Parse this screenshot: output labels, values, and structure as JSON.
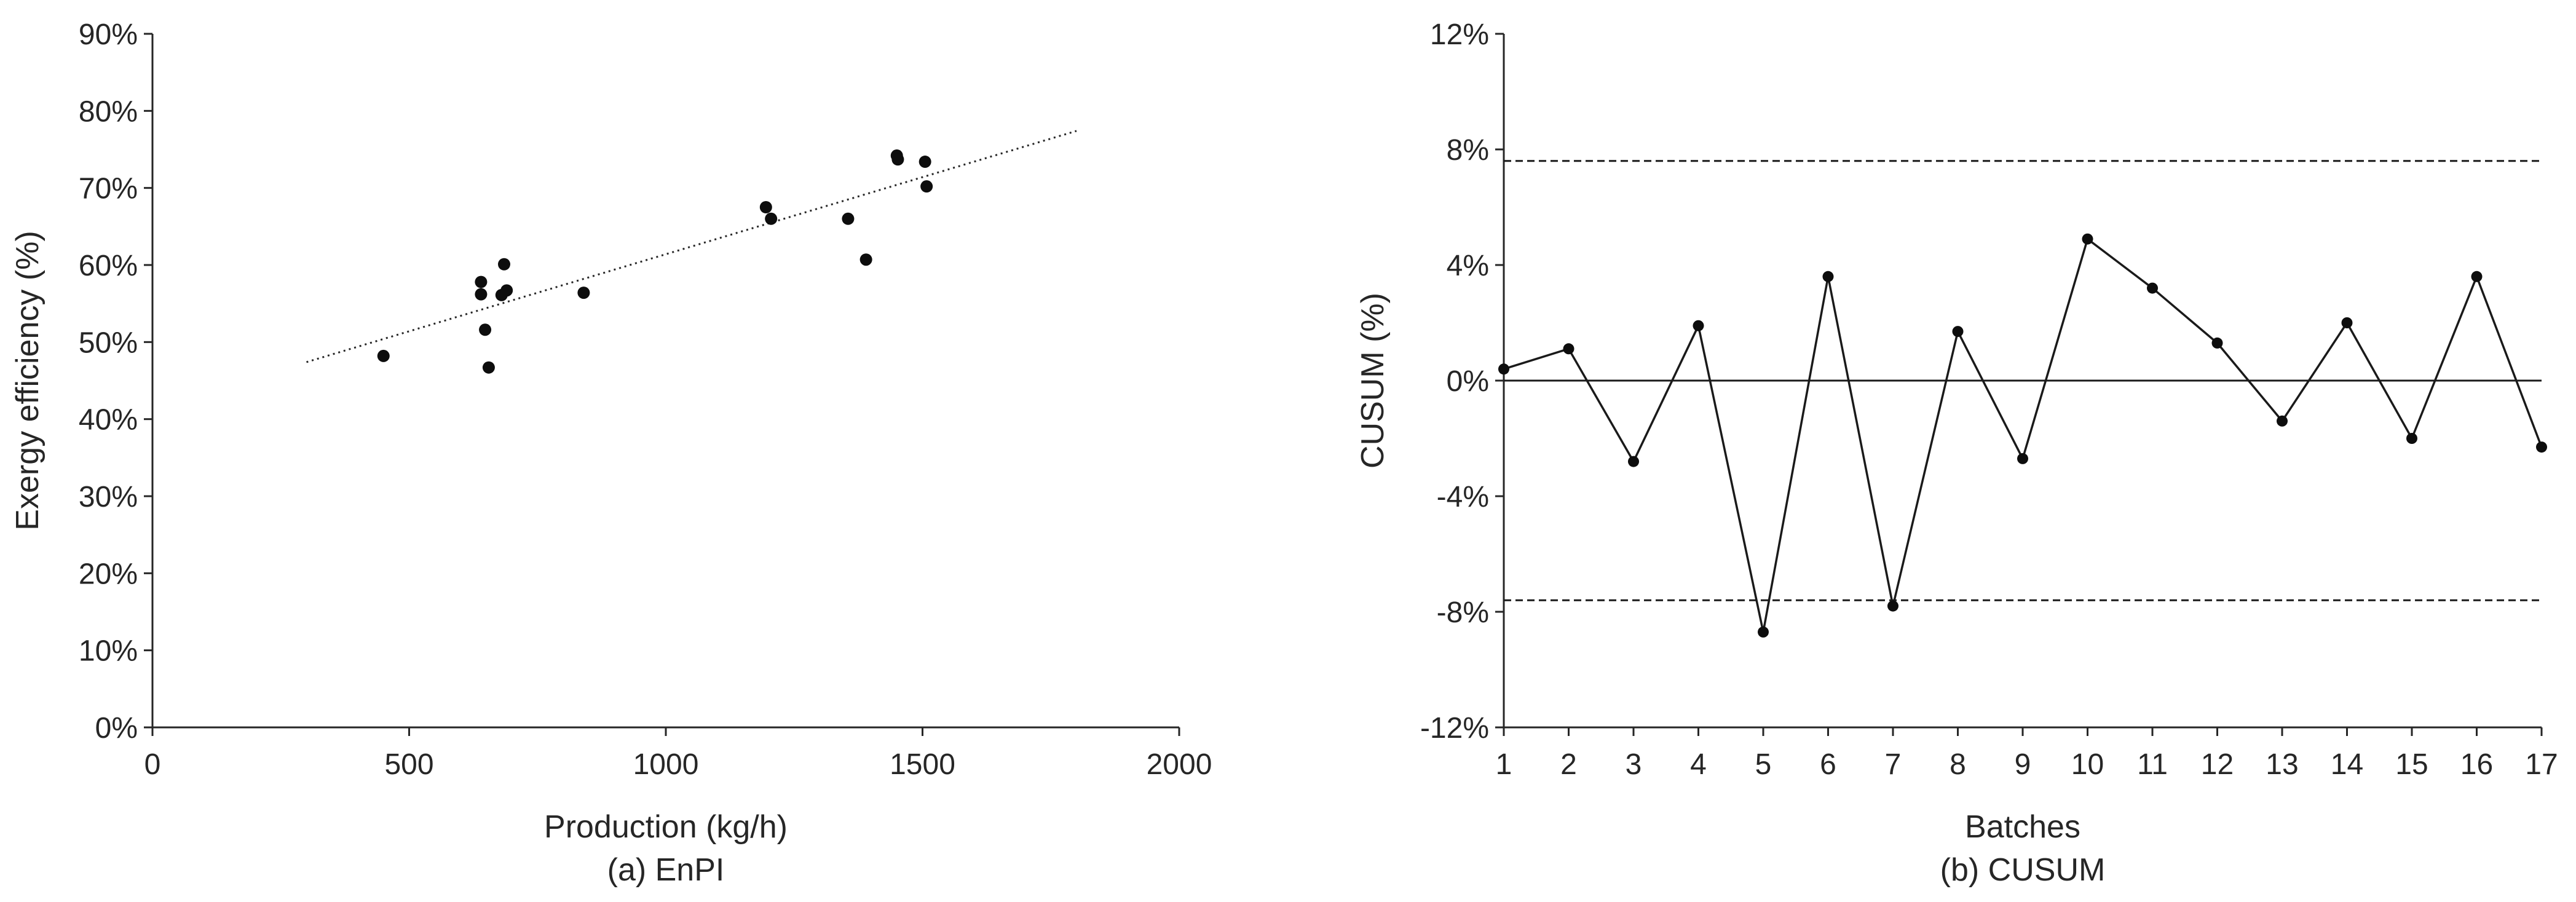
{
  "chart_data": [
    {
      "type": "scatter",
      "caption": "(a) EnPI",
      "xlabel": "Production (kg/h)",
      "ylabel": "Exergy efficiency (%)",
      "xlim": [
        0,
        2000
      ],
      "ylim": [
        0,
        0.9
      ],
      "x_ticks": [
        "0",
        "500",
        "1000",
        "1500",
        "2000"
      ],
      "x_tick_values": [
        0,
        500,
        1000,
        1500,
        2000
      ],
      "y_ticks": [
        "0%",
        "10%",
        "20%",
        "30%",
        "40%",
        "50%",
        "60%",
        "70%",
        "80%",
        "90%"
      ],
      "y_tick_values": [
        0,
        0.1,
        0.2,
        0.3,
        0.4,
        0.5,
        0.6,
        0.7,
        0.8,
        0.9
      ],
      "grid": false,
      "points": [
        {
          "x": 450,
          "y": 0.482
        },
        {
          "x": 640,
          "y": 0.578
        },
        {
          "x": 640,
          "y": 0.562
        },
        {
          "x": 648,
          "y": 0.516
        },
        {
          "x": 655,
          "y": 0.467
        },
        {
          "x": 680,
          "y": 0.561
        },
        {
          "x": 685,
          "y": 0.601
        },
        {
          "x": 690,
          "y": 0.567
        },
        {
          "x": 840,
          "y": 0.564
        },
        {
          "x": 1195,
          "y": 0.675
        },
        {
          "x": 1205,
          "y": 0.66
        },
        {
          "x": 1355,
          "y": 0.66
        },
        {
          "x": 1390,
          "y": 0.607
        },
        {
          "x": 1450,
          "y": 0.742
        },
        {
          "x": 1452,
          "y": 0.737
        },
        {
          "x": 1505,
          "y": 0.734
        },
        {
          "x": 1508,
          "y": 0.702
        }
      ],
      "trendline": {
        "style": "dotted",
        "points": [
          [
            300,
            0.474
          ],
          [
            1800,
            0.774
          ]
        ]
      }
    },
    {
      "type": "line",
      "caption": "(b) CUSUM",
      "xlabel": "Batches",
      "ylabel": "CUSUM (%)",
      "ylim": [
        -0.12,
        0.12
      ],
      "y_ticks": [
        "-12%",
        "-8%",
        "-4%",
        "0%",
        "4%",
        "8%",
        "12%"
      ],
      "y_tick_values": [
        -0.12,
        -0.08,
        -0.04,
        0,
        0.04,
        0.08,
        0.12
      ],
      "x": [
        1,
        2,
        3,
        4,
        5,
        6,
        7,
        8,
        9,
        10,
        11,
        12,
        13,
        14,
        15,
        16,
        17
      ],
      "values": [
        0.004,
        0.011,
        -0.028,
        0.019,
        -0.087,
        0.036,
        -0.078,
        0.017,
        -0.027,
        0.049,
        0.032,
        0.013,
        -0.014,
        0.02,
        -0.02,
        0.036,
        -0.023
      ],
      "grid": false,
      "reference_lines": [
        {
          "value": 0.076,
          "style": "dashed"
        },
        {
          "value": 0,
          "style": "solid"
        },
        {
          "value": -0.076,
          "style": "dashed"
        }
      ]
    }
  ]
}
